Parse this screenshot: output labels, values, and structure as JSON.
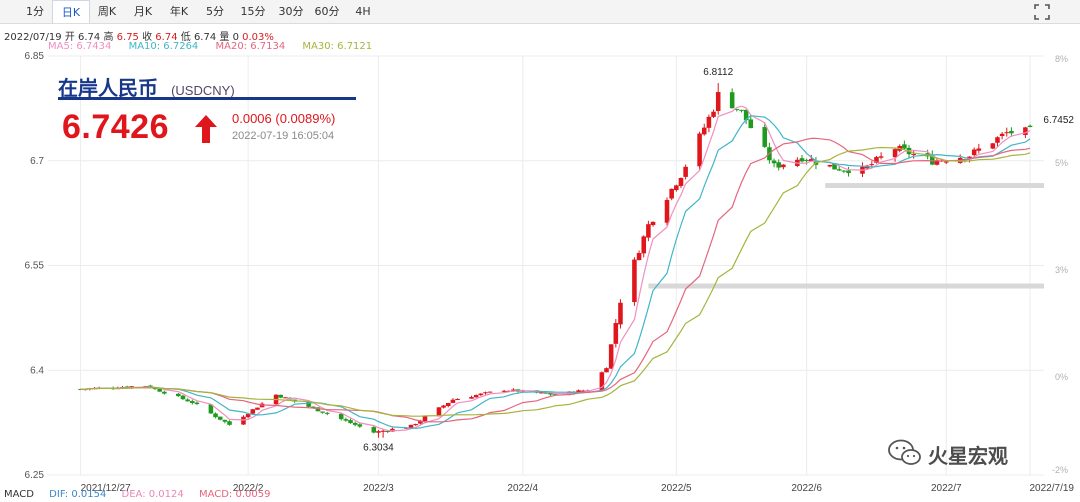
{
  "tabs": [
    {
      "label": "1分"
    },
    {
      "label": "日K"
    },
    {
      "label": "周K"
    },
    {
      "label": "月K"
    },
    {
      "label": "年K"
    },
    {
      "label": "5分"
    },
    {
      "label": "15分"
    },
    {
      "label": "30分"
    },
    {
      "label": "60分"
    },
    {
      "label": "4H"
    }
  ],
  "active_tab": "日K",
  "ohlc": {
    "date": "2022/07/19",
    "open_label": "开",
    "open": "6.74",
    "high_label": "高",
    "high": "6.75",
    "close_label": "收",
    "close": "6.74",
    "low_label": "低",
    "low": "6.74",
    "vol_label": "量",
    "vol": "0",
    "pct": "0.03%"
  },
  "ma": [
    {
      "label": "MA5: 6.7434",
      "color": "#f08fc0"
    },
    {
      "label": "MA10: 6.7264",
      "color": "#3fb6c8"
    },
    {
      "label": "MA20: 6.7134",
      "color": "#e4667e"
    },
    {
      "label": "MA30: 6.7121",
      "color": "#a7b43e"
    }
  ],
  "header": {
    "name": "在岸人民币",
    "code": "(USDCNY)",
    "price": "6.7426",
    "change": "0.0006 (0.0089%)",
    "timestamp": "2022-07-19 16:05:04"
  },
  "macd": {
    "label": "MACD",
    "dif": "DIF: 0.0154",
    "dea": "DEA: 0.0124",
    "macd": "MACD: 0.0059",
    "dif_color": "#3a86c8",
    "dea_color": "#e887b6",
    "macd_color": "#e4667e"
  },
  "watermark": "火星宏观",
  "colors": {
    "up": "#e0161d",
    "down": "#1e9b1e"
  },
  "chart_data": {
    "type": "candlestick",
    "yticks": [
      "6.85",
      "6.7",
      "6.55",
      "6.4",
      "6.25"
    ],
    "ylim": [
      6.25,
      6.85
    ],
    "right_ticks": [
      "8%",
      "5%",
      "3%",
      "0%",
      "-2%"
    ],
    "xticks": [
      "2021/12/27",
      "2022/2",
      "2022/3",
      "2022/4",
      "2022/5",
      "2022/6",
      "2022/7",
      "2022/7/19"
    ],
    "annotations": [
      {
        "text": "6.8112",
        "value": 6.8112
      },
      {
        "text": "6.3034",
        "value": 6.3034
      },
      {
        "text": "6.7452",
        "value": 6.7452
      }
    ],
    "reference_levels": [
      6.6645,
      6.5206
    ],
    "anchors": [
      {
        "date": "2021-12-27",
        "close": 6.373
      },
      {
        "date": "2022-01-10",
        "close": 6.378
      },
      {
        "date": "2022-01-20",
        "close": 6.354
      },
      {
        "date": "2022-01-28",
        "close": 6.322
      },
      {
        "date": "2022-02-07",
        "close": 6.365
      },
      {
        "date": "2022-02-18",
        "close": 6.338
      },
      {
        "date": "2022-02-28",
        "close": 6.311
      },
      {
        "date": "2022-03-08",
        "close": 6.32
      },
      {
        "date": "2022-03-17",
        "close": 6.358
      },
      {
        "date": "2022-03-28",
        "close": 6.372
      },
      {
        "date": "2022-04-08",
        "close": 6.365
      },
      {
        "date": "2022-04-15",
        "close": 6.372
      },
      {
        "date": "2022-04-19",
        "close": 6.405
      },
      {
        "date": "2022-04-22",
        "close": 6.5
      },
      {
        "date": "2022-04-25",
        "close": 6.555
      },
      {
        "date": "2022-04-28",
        "close": 6.608
      },
      {
        "date": "2022-05-05",
        "close": 6.68
      },
      {
        "date": "2022-05-12",
        "close": 6.775
      },
      {
        "date": "2022-05-13",
        "close": 6.795
      },
      {
        "date": "2022-05-18",
        "close": 6.77
      },
      {
        "date": "2022-05-25",
        "close": 6.692
      },
      {
        "date": "2022-05-31",
        "close": 6.705
      },
      {
        "date": "2022-06-07",
        "close": 6.69
      },
      {
        "date": "2022-06-13",
        "close": 6.686
      },
      {
        "date": "2022-06-20",
        "close": 6.718
      },
      {
        "date": "2022-06-28",
        "close": 6.7
      },
      {
        "date": "2022-07-06",
        "close": 6.708
      },
      {
        "date": "2022-07-14",
        "close": 6.74
      },
      {
        "date": "2022-07-19",
        "close": 6.7426
      }
    ]
  }
}
